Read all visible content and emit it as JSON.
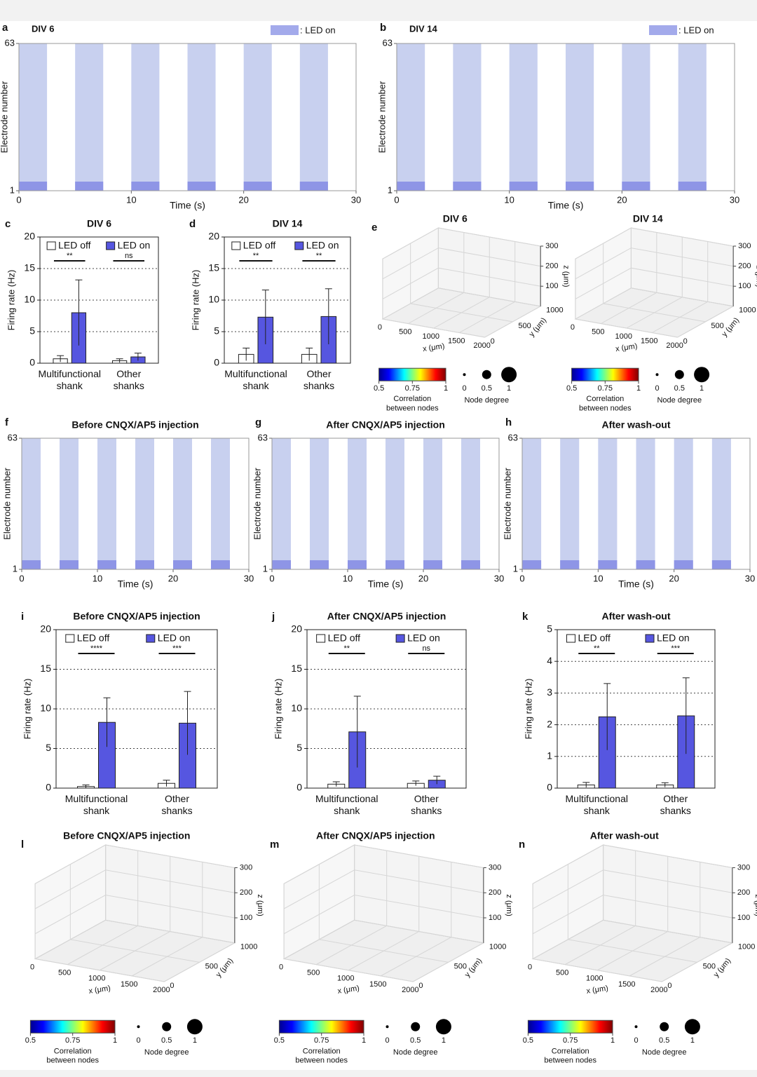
{
  "chart_data": [
    {
      "type": "raster",
      "panel": "a",
      "title": "DIV 6",
      "legend": ": LED on",
      "xlabel": "Time (s)",
      "ylabel": "Electrode number",
      "xlim": [
        0,
        30
      ],
      "xticks": [
        0,
        10,
        20,
        30
      ],
      "ylim": [
        1,
        63
      ],
      "yticks": [
        1,
        63
      ],
      "led_on": [
        [
          0,
          2.5
        ],
        [
          5,
          7.5
        ],
        [
          10,
          12.5
        ],
        [
          15,
          17.5
        ],
        [
          20,
          22.5
        ],
        [
          25,
          27.5
        ]
      ]
    },
    {
      "type": "raster",
      "panel": "b",
      "title": "DIV 14",
      "legend": ": LED on",
      "xlabel": "Time (s)",
      "ylabel": "Electrode number",
      "xlim": [
        0,
        30
      ],
      "xticks": [
        0,
        10,
        20,
        30
      ],
      "ylim": [
        1,
        63
      ],
      "yticks": [
        1,
        63
      ],
      "led_on": [
        [
          0,
          2.5
        ],
        [
          5,
          7.5
        ],
        [
          10,
          12.5
        ],
        [
          15,
          17.5
        ],
        [
          20,
          22.5
        ],
        [
          25,
          27.5
        ]
      ]
    },
    {
      "type": "bar",
      "panel": "c",
      "title": "DIV 6",
      "ylabel": "Firing rate (Hz)",
      "categories": [
        "Multifunctional shank",
        "Other shanks"
      ],
      "ylim": [
        0,
        20
      ],
      "yticks": [
        0,
        5,
        10,
        15,
        20
      ],
      "significance": [
        "**",
        "ns"
      ],
      "series": [
        {
          "name": "LED off",
          "color": "#ffffff",
          "values": [
            0.7,
            0.4
          ],
          "errors": [
            0.5,
            0.3
          ]
        },
        {
          "name": "LED on",
          "color": "#5656e0",
          "values": [
            8.0,
            1.0
          ],
          "errors": [
            5.2,
            0.6
          ]
        }
      ]
    },
    {
      "type": "bar",
      "panel": "d",
      "title": "DIV 14",
      "ylabel": "Firing rate (Hz)",
      "categories": [
        "Multifunctional shank",
        "Other shanks"
      ],
      "ylim": [
        0,
        20
      ],
      "yticks": [
        0,
        5,
        10,
        15,
        20
      ],
      "significance": [
        "**",
        "**"
      ],
      "series": [
        {
          "name": "LED off",
          "color": "#ffffff",
          "values": [
            1.4,
            1.4
          ],
          "errors": [
            1.0,
            1.0
          ]
        },
        {
          "name": "LED on",
          "color": "#5656e0",
          "values": [
            7.3,
            7.4
          ],
          "errors": [
            4.3,
            4.4
          ]
        }
      ]
    },
    {
      "type": "network",
      "panel": "e",
      "title": "DIV 6",
      "xlabel": "x (μm)",
      "ylabel": "y (μm)",
      "zlabel": "z (μm)",
      "xlim": [
        0,
        2000
      ],
      "ylim": [
        0,
        1000
      ],
      "zlim": [
        0,
        300
      ],
      "xticks": [
        0,
        500,
        1000,
        1500,
        2000
      ],
      "yticks": [
        0,
        500,
        1000
      ],
      "zticks": [
        100,
        200,
        300
      ],
      "clim": [
        0.5,
        1
      ],
      "colorbar_ticks": [
        0.5,
        0.75,
        1
      ],
      "colorbar_label": "Correlation between nodes",
      "size_ticks": [
        0,
        0.5,
        1
      ],
      "size_label": "Node degree"
    },
    {
      "type": "network",
      "title": "DIV 14",
      "xlabel": "x (μm)",
      "ylabel": "y (μm)",
      "zlabel": "z (μm)",
      "xlim": [
        0,
        2000
      ],
      "ylim": [
        0,
        1000
      ],
      "zlim": [
        0,
        300
      ],
      "xticks": [
        0,
        500,
        1000,
        1500,
        2000
      ],
      "yticks": [
        0,
        500,
        1000
      ],
      "zticks": [
        100,
        200,
        300
      ],
      "clim": [
        0.5,
        1
      ],
      "colorbar_ticks": [
        0.5,
        0.75,
        1
      ],
      "colorbar_label": "Correlation between nodes",
      "size_ticks": [
        0,
        0.5,
        1
      ],
      "size_label": "Node degree"
    },
    {
      "type": "raster",
      "panel": "f",
      "title": "Before CNQX/AP5 injection",
      "xlabel": "Time (s)",
      "ylabel": "Electrode number",
      "xlim": [
        0,
        30
      ],
      "xticks": [
        0,
        10,
        20,
        30
      ],
      "ylim": [
        1,
        63
      ],
      "yticks": [
        1,
        63
      ],
      "led_on": [
        [
          0,
          2.5
        ],
        [
          5,
          7.5
        ],
        [
          10,
          12.5
        ],
        [
          15,
          17.5
        ],
        [
          20,
          22.5
        ],
        [
          25,
          27.5
        ]
      ]
    },
    {
      "type": "raster",
      "panel": "g",
      "title": "After CNQX/AP5 injection",
      "xlabel": "Time (s)",
      "ylabel": "Electrode number",
      "xlim": [
        0,
        30
      ],
      "xticks": [
        0,
        10,
        20,
        30
      ],
      "ylim": [
        1,
        63
      ],
      "yticks": [
        1,
        63
      ],
      "led_on": [
        [
          0,
          2.5
        ],
        [
          5,
          7.5
        ],
        [
          10,
          12.5
        ],
        [
          15,
          17.5
        ],
        [
          20,
          22.5
        ],
        [
          25,
          27.5
        ]
      ]
    },
    {
      "type": "raster",
      "panel": "h",
      "title": "After wash-out",
      "xlabel": "Time (s)",
      "ylabel": "Electrode number",
      "xlim": [
        0,
        30
      ],
      "xticks": [
        0,
        10,
        20,
        30
      ],
      "ylim": [
        1,
        63
      ],
      "yticks": [
        1,
        63
      ],
      "led_on": [
        [
          0,
          2.5
        ],
        [
          5,
          7.5
        ],
        [
          10,
          12.5
        ],
        [
          15,
          17.5
        ],
        [
          20,
          22.5
        ],
        [
          25,
          27.5
        ]
      ]
    },
    {
      "type": "bar",
      "panel": "i",
      "title": "Before CNQX/AP5 injection",
      "ylabel": "Firing rate (Hz)",
      "categories": [
        "Multifunctional shank",
        "Other shanks"
      ],
      "ylim": [
        0,
        20
      ],
      "yticks": [
        0,
        5,
        10,
        15,
        20
      ],
      "significance": [
        "****",
        "***"
      ],
      "series": [
        {
          "name": "LED off",
          "color": "#ffffff",
          "values": [
            0.2,
            0.6
          ],
          "errors": [
            0.2,
            0.4
          ]
        },
        {
          "name": "LED on",
          "color": "#5656e0",
          "values": [
            8.3,
            8.2
          ],
          "errors": [
            3.1,
            4.0
          ]
        }
      ]
    },
    {
      "type": "bar",
      "panel": "j",
      "title": "After CNQX/AP5 injection",
      "ylabel": "Firing rate (Hz)",
      "categories": [
        "Multifunctional shank",
        "Other shanks"
      ],
      "ylim": [
        0,
        20
      ],
      "yticks": [
        0,
        5,
        10,
        15,
        20
      ],
      "significance": [
        "**",
        "ns"
      ],
      "series": [
        {
          "name": "LED off",
          "color": "#ffffff",
          "values": [
            0.5,
            0.6
          ],
          "errors": [
            0.3,
            0.3
          ]
        },
        {
          "name": "LED on",
          "color": "#5656e0",
          "values": [
            7.1,
            1.0
          ],
          "errors": [
            4.5,
            0.5
          ]
        }
      ]
    },
    {
      "type": "bar",
      "panel": "k",
      "title": "After wash-out",
      "ylabel": "Firing rate (Hz)",
      "categories": [
        "Multifunctional shank",
        "Other shanks"
      ],
      "ylim": [
        0,
        5
      ],
      "yticks": [
        0,
        1,
        2,
        3,
        4,
        5
      ],
      "significance": [
        "**",
        "***"
      ],
      "series": [
        {
          "name": "LED off",
          "color": "#ffffff",
          "values": [
            0.1,
            0.1
          ],
          "errors": [
            0.08,
            0.07
          ]
        },
        {
          "name": "LED on",
          "color": "#5656e0",
          "values": [
            2.25,
            2.28
          ],
          "errors": [
            1.05,
            1.2
          ]
        }
      ]
    },
    {
      "type": "network",
      "panel": "l",
      "title": "Before CNQX/AP5 injection",
      "xlabel": "x (μm)",
      "ylabel": "y (μm)",
      "zlabel": "z (μm)",
      "xlim": [
        0,
        2000
      ],
      "ylim": [
        0,
        1000
      ],
      "zlim": [
        0,
        300
      ],
      "xticks": [
        0,
        500,
        1000,
        1500,
        2000
      ],
      "yticks": [
        0,
        500,
        1000
      ],
      "zticks": [
        100,
        200,
        300
      ],
      "clim": [
        0.5,
        1
      ],
      "colorbar_ticks": [
        0.5,
        0.75,
        1
      ],
      "colorbar_label": "Correlation between nodes",
      "size_ticks": [
        0,
        0.5,
        1
      ],
      "size_label": "Node degree"
    },
    {
      "type": "network",
      "panel": "m",
      "title": "After CNQX/AP5 injection",
      "xlabel": "x (μm)",
      "ylabel": "y (μm)",
      "zlabel": "z (μm)",
      "xlim": [
        0,
        2000
      ],
      "ylim": [
        0,
        1000
      ],
      "zlim": [
        0,
        300
      ],
      "xticks": [
        0,
        500,
        1000,
        1500,
        2000
      ],
      "yticks": [
        0,
        500,
        1000
      ],
      "zticks": [
        100,
        200,
        300
      ],
      "clim": [
        0.5,
        1
      ],
      "colorbar_ticks": [
        0.5,
        0.75,
        1
      ],
      "colorbar_label": "Correlation between nodes",
      "size_ticks": [
        0,
        0.5,
        1
      ],
      "size_label": "Node degree"
    },
    {
      "type": "network",
      "panel": "n",
      "title": "After wash-out",
      "xlabel": "x (μm)",
      "ylabel": "y (μm)",
      "zlabel": "z (μm)",
      "xlim": [
        0,
        2000
      ],
      "ylim": [
        0,
        1000
      ],
      "zlim": [
        0,
        300
      ],
      "xticks": [
        0,
        500,
        1000,
        1500,
        2000
      ],
      "yticks": [
        0,
        500,
        1000
      ],
      "zticks": [
        100,
        200,
        300
      ],
      "clim": [
        0.5,
        1
      ],
      "colorbar_ticks": [
        0.5,
        0.75,
        1
      ],
      "colorbar_label": "Correlation between nodes",
      "size_ticks": [
        0,
        0.5,
        1
      ],
      "size_label": "Node degree"
    }
  ]
}
